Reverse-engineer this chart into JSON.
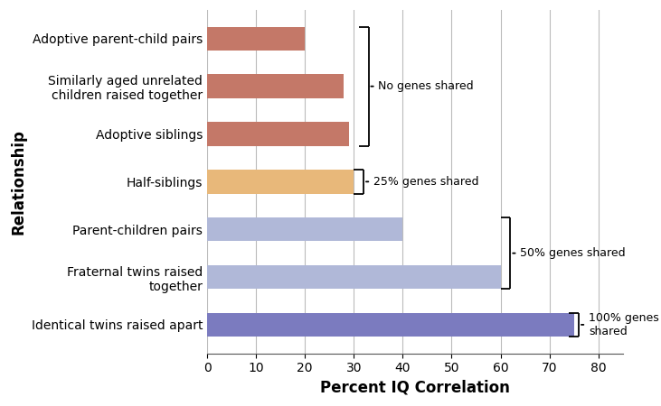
{
  "categories": [
    "Identical twins raised apart",
    "Fraternal twins raised\ntogether",
    "Parent-children pairs",
    "Half-siblings",
    "Adoptive siblings",
    "Similarly aged unrelated\nchildren raised together",
    "Adoptive parent-child pairs"
  ],
  "values": [
    75,
    60,
    40,
    30,
    29,
    28,
    20
  ],
  "colors": [
    "#7b7bbf",
    "#b0b8d8",
    "#b0b8d8",
    "#e8b87a",
    "#c47868",
    "#c47868",
    "#c47868"
  ],
  "xlabel": "Percent IQ Correlation",
  "ylabel": "Relationship",
  "xlim": [
    0,
    85
  ],
  "xticks": [
    0,
    10,
    20,
    30,
    40,
    50,
    60,
    70,
    80
  ],
  "background_color": "#ffffff",
  "grid_color": "#bbbbbb",
  "label_fontsize": 11,
  "tick_fontsize": 10,
  "annot_fontsize": 9,
  "bar_height": 0.5
}
